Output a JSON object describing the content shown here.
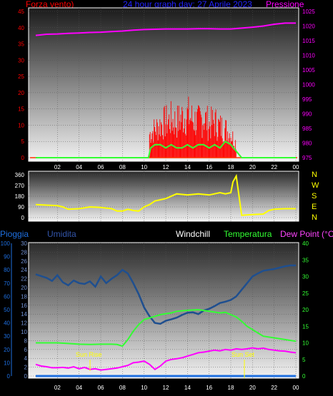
{
  "header": {
    "left_label": "Forza vento)",
    "title": "24 hour graph day: 27 Aprile 2023",
    "right_label": "Pressione"
  },
  "colors": {
    "wind": "#ff0000",
    "gust_avg": "#33ff33",
    "pressure": "#ff00ff",
    "direction": "#ffff00",
    "humidity": "#1f4f8f",
    "temperature": "#33ff33",
    "dewpoint": "#ff00ff",
    "rain": "#1e6fe0",
    "hum_label": "#3355aa",
    "dew_label": "#ff44ff"
  },
  "x_ticks": [
    "02",
    "04",
    "06",
    "08",
    "10",
    "12",
    "14",
    "16",
    "18",
    "20",
    "22",
    "00"
  ],
  "wind_axis": [
    "0",
    "5",
    "10",
    "15",
    "20",
    "25",
    "30",
    "35",
    "40",
    "45"
  ],
  "pressure_axis": [
    "975",
    "980",
    "985",
    "990",
    "995",
    "1000",
    "1005",
    "1010",
    "1015",
    "1020",
    "1025"
  ],
  "dir_axis": [
    "0",
    "90",
    "180",
    "270",
    "360"
  ],
  "dir_compass": [
    "N",
    "W",
    "S",
    "E",
    "N"
  ],
  "bottom": {
    "rain_label": "Pioggia",
    "hum_label": "Umidita",
    "windchill_label": "Windchill",
    "temp_label": "Temperatura",
    "dew_label": "Dew Point (°C)",
    "sunrise": "Sun Rise",
    "sunset": "Sun Set"
  },
  "rain_axis": [
    "0",
    "10",
    "20",
    "30",
    "40",
    "50",
    "60",
    "70",
    "80",
    "90",
    "100"
  ],
  "hum_axis": [
    "0",
    "2",
    "4",
    "6",
    "8",
    "10",
    "12",
    "14",
    "16",
    "18",
    "20",
    "22",
    "24",
    "26",
    "28",
    "30"
  ],
  "temp_axis": [
    "0",
    "5",
    "10",
    "15",
    "20",
    "25",
    "30",
    "35",
    "40"
  ],
  "chart_data": [
    {
      "type": "line",
      "title": "24 hour graph day: 27 Aprile 2023",
      "x_unit": "hour",
      "xlim": [
        0,
        24
      ],
      "ylim_left": [
        0,
        45
      ],
      "ylim_right": [
        975,
        1025
      ],
      "series": [
        {
          "name": "Forza vento)",
          "axis": "left",
          "x": [
            10.5,
            11,
            11.5,
            12,
            12.5,
            13,
            13.5,
            14,
            14.5,
            15,
            15.5,
            16,
            16.5,
            17,
            17.5,
            18,
            18.5
          ],
          "y": [
            10,
            12,
            14,
            15,
            16,
            15,
            17,
            18,
            16,
            15,
            17,
            14,
            15,
            13,
            12,
            10,
            6
          ]
        },
        {
          "name": "gust_avg",
          "axis": "left",
          "x": [
            0,
            10.4,
            10.6,
            11,
            11.5,
            12,
            12.5,
            13,
            13.5,
            14,
            14.5,
            15,
            15.5,
            16,
            16.5,
            17,
            17.5,
            18,
            18.5,
            19,
            24
          ],
          "y": [
            0,
            0,
            3,
            4,
            4,
            3,
            4,
            3,
            3,
            4,
            3,
            4,
            4,
            3,
            4,
            3,
            5,
            4,
            2,
            0,
            0
          ]
        },
        {
          "name": "Pressione",
          "axis": "right",
          "x": [
            0,
            1,
            2,
            3,
            4,
            5,
            6,
            7,
            8,
            9,
            10,
            11,
            12,
            13,
            14,
            15,
            16,
            17,
            18,
            19,
            20,
            21,
            22,
            23,
            24
          ],
          "y": [
            1016.8,
            1017.2,
            1017.3,
            1017.5,
            1017.6,
            1017.8,
            1017.9,
            1018.1,
            1018.3,
            1018.6,
            1018.8,
            1018.9,
            1019.0,
            1019.0,
            1019.0,
            1019.1,
            1019.1,
            1019.0,
            1019.0,
            1019.3,
            1019.6,
            1020.0,
            1020.6,
            1021.0,
            1021.0
          ]
        }
      ]
    },
    {
      "type": "line",
      "title": "",
      "x_unit": "hour",
      "xlim": [
        0,
        24
      ],
      "ylim": [
        0,
        360
      ],
      "series": [
        {
          "name": "direction",
          "x": [
            0,
            1,
            2,
            2.5,
            3,
            4,
            5,
            6,
            7,
            7.5,
            8,
            8.5,
            9,
            9.5,
            10,
            10.5,
            11,
            11.5,
            12,
            13,
            14,
            15,
            16,
            17,
            17.5,
            18,
            18.2,
            18.5,
            19,
            20,
            21,
            21.5,
            22,
            23,
            24
          ],
          "y": [
            110,
            105,
            100,
            90,
            70,
            75,
            90,
            85,
            75,
            55,
            55,
            70,
            60,
            55,
            90,
            110,
            140,
            150,
            160,
            200,
            190,
            200,
            190,
            210,
            200,
            210,
            300,
            350,
            20,
            25,
            30,
            60,
            70,
            75,
            75
          ]
        }
      ]
    },
    {
      "type": "line",
      "title": "",
      "x_unit": "hour",
      "xlim": [
        0,
        24
      ],
      "ylim_rain": [
        0,
        100
      ],
      "ylim_hum": [
        0,
        30
      ],
      "ylim_temp": [
        0,
        40
      ],
      "series": [
        {
          "name": "Umidita",
          "axis": "hum",
          "x": [
            0,
            0.5,
            1,
            1.5,
            2,
            2.5,
            3,
            3.5,
            4,
            4.5,
            5,
            5.5,
            6,
            6.5,
            7,
            7.5,
            8,
            8.5,
            9,
            9.5,
            10,
            10.5,
            11,
            11.5,
            12,
            12.5,
            13,
            13.5,
            14,
            14.5,
            15,
            15.5,
            16,
            16.5,
            17,
            17.5,
            18,
            18.5,
            19,
            19.5,
            20,
            20.5,
            21,
            21.5,
            22,
            22.5,
            23,
            23.5,
            24
          ],
          "y": [
            23,
            22.6,
            22.2,
            21.5,
            22.8,
            21.2,
            20.5,
            21.6,
            21.0,
            20.8,
            21.4,
            20.2,
            22.5,
            21.0,
            22.0,
            22.8,
            24.0,
            23.2,
            21.0,
            18.5,
            15.5,
            13.5,
            12.0,
            11.8,
            12.5,
            12.8,
            13.2,
            13.8,
            14.3,
            14.4,
            14.0,
            14.8,
            15.2,
            15.8,
            16.5,
            16.8,
            17.2,
            18.0,
            19.5,
            21.0,
            22.5,
            23.2,
            23.8,
            24.0,
            24.2,
            24.5,
            24.8,
            25.0,
            25.0
          ]
        },
        {
          "name": "Temperatura",
          "axis": "temp",
          "x": [
            0,
            1,
            2,
            3,
            4,
            5,
            6,
            7,
            7.5,
            8,
            8.5,
            9,
            9.5,
            10,
            10.5,
            11,
            11.5,
            12,
            12.5,
            13,
            14,
            15,
            16,
            17,
            17.5,
            18,
            18.5,
            19,
            19.5,
            20,
            20.5,
            21,
            22,
            23,
            24
          ],
          "y": [
            10,
            10,
            10,
            9.8,
            9.6,
            9.5,
            9.6,
            9.6,
            9.5,
            9.0,
            11.0,
            13.5,
            15.5,
            17.0,
            17.5,
            18.0,
            18.5,
            18.8,
            19.0,
            19.5,
            19.8,
            20.0,
            19.5,
            19.0,
            19.2,
            18.5,
            17.8,
            16.5,
            15.0,
            14.0,
            13.0,
            12.0,
            11.5,
            11.0,
            10.5
          ]
        },
        {
          "name": "Dew Point (°C)",
          "axis": "temp",
          "x": [
            0,
            0.5,
            1,
            1.5,
            2,
            2.5,
            3,
            3.5,
            4,
            4.5,
            5,
            5.5,
            6,
            6.5,
            7,
            7.5,
            8,
            8.5,
            9,
            9.5,
            10,
            10.5,
            11,
            11.5,
            12,
            12.5,
            13,
            13.5,
            14,
            14.5,
            15,
            15.5,
            16,
            16.5,
            17,
            17.5,
            18,
            18.5,
            19,
            19.5,
            20,
            20.5,
            21,
            21.5,
            22,
            22.5,
            23,
            23.5,
            24
          ],
          "y": [
            3.5,
            3.0,
            2.8,
            2.5,
            2.5,
            2.6,
            2.4,
            2.8,
            2.2,
            2.6,
            2.0,
            2.2,
            1.8,
            2.0,
            2.2,
            2.4,
            2.8,
            3.2,
            4.0,
            4.2,
            4.5,
            3.5,
            2.0,
            3.0,
            4.5,
            5.0,
            5.2,
            5.5,
            6.0,
            6.5,
            7.0,
            7.2,
            7.5,
            7.8,
            7.6,
            8.0,
            7.8,
            8.2,
            8.0,
            8.2,
            8.5,
            8.2,
            8.4,
            8.0,
            7.8,
            7.6,
            7.5,
            7.2,
            7.0
          ]
        },
        {
          "name": "Pioggia",
          "axis": "rain",
          "x": [
            0,
            24
          ],
          "y": [
            0,
            0
          ]
        }
      ]
    }
  ]
}
